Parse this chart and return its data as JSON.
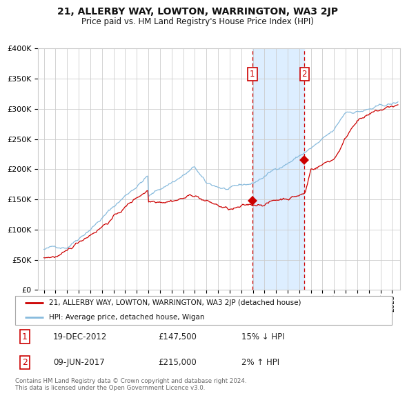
{
  "title": "21, ALLERBY WAY, LOWTON, WARRINGTON, WA3 2JP",
  "subtitle": "Price paid vs. HM Land Registry's House Price Index (HPI)",
  "legend_line1": "21, ALLERBY WAY, LOWTON, WARRINGTON, WA3 2JP (detached house)",
  "legend_line2": "HPI: Average price, detached house, Wigan",
  "annotation1_date": "19-DEC-2012",
  "annotation1_price": "£147,500",
  "annotation1_hpi": "15% ↓ HPI",
  "annotation2_date": "09-JUN-2017",
  "annotation2_price": "£215,000",
  "annotation2_hpi": "2% ↑ HPI",
  "footer": "Contains HM Land Registry data © Crown copyright and database right 2024.\nThis data is licensed under the Open Government Licence v3.0.",
  "red_color": "#cc0000",
  "blue_color": "#88bbdd",
  "highlight_fill": "#ddeeff",
  "grid_color": "#cccccc",
  "background_color": "#ffffff",
  "sale1_x": 2012.96,
  "sale1_y": 147500,
  "sale2_x": 2017.44,
  "sale2_y": 215000,
  "ylim": [
    0,
    400000
  ],
  "xlim_start": 1994.5,
  "xlim_end": 2025.7
}
